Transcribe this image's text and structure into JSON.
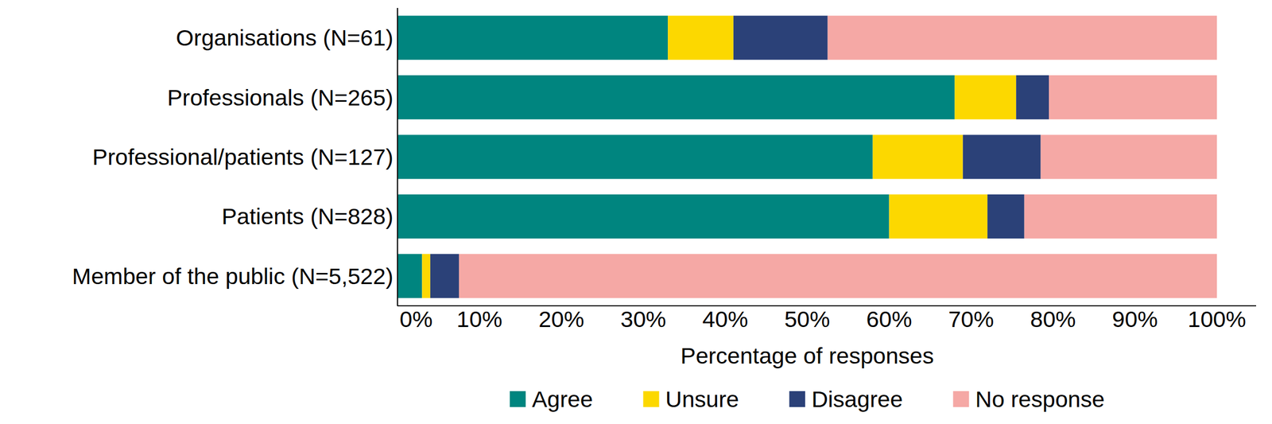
{
  "chart_data": {
    "type": "bar",
    "orientation": "horizontal",
    "stacked": true,
    "legend": "bottom",
    "grid": false,
    "x_label": "Percentage of responses",
    "categories": [
      "Organisations (N=61)",
      "Professionals (N=265)",
      "Professional/patients (N=127)",
      "Patients (N=828)",
      "Member of the public (N=5,522)"
    ],
    "series": [
      {
        "name": "Agree",
        "color": "#00857f",
        "values": [
          33,
          68,
          58,
          60,
          3
        ]
      },
      {
        "name": "Unsure",
        "color": "#fcd800",
        "values": [
          8,
          7.5,
          11,
          12,
          1
        ]
      },
      {
        "name": "Disagree",
        "color": "#2b4178",
        "values": [
          11.5,
          4,
          9.5,
          4.5,
          3.5
        ]
      },
      {
        "name": "No response",
        "color": "#f5a8a5",
        "values": [
          47.5,
          20.5,
          21.5,
          23.5,
          92.5
        ]
      }
    ],
    "xlim": [
      0,
      100
    ],
    "xticks": [
      {
        "value": 0,
        "label": "0%"
      },
      {
        "value": 10,
        "label": "10%"
      },
      {
        "value": 20,
        "label": "20%"
      },
      {
        "value": 30,
        "label": "30%"
      },
      {
        "value": 40,
        "label": "40%"
      },
      {
        "value": 50,
        "label": "50%"
      },
      {
        "value": 60,
        "label": "60%"
      },
      {
        "value": 70,
        "label": "70%"
      },
      {
        "value": 80,
        "label": "80%"
      },
      {
        "value": 90,
        "label": "90%"
      },
      {
        "value": 100,
        "label": "100%"
      }
    ]
  }
}
